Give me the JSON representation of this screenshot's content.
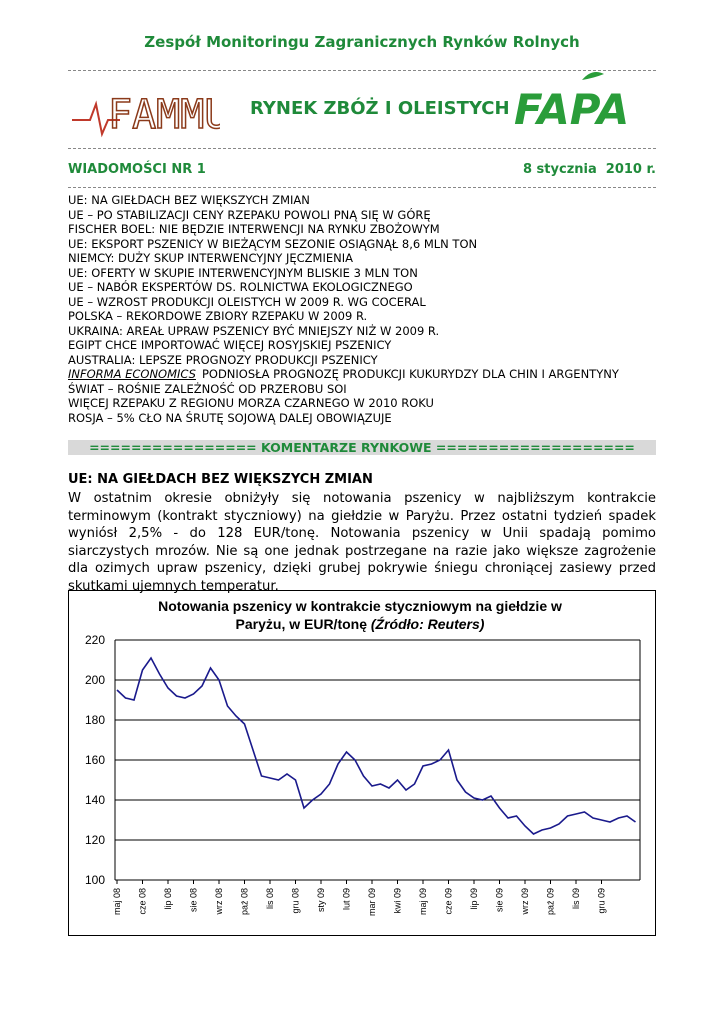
{
  "header": {
    "top": "Zespół Monitoringu Zagranicznych Rynków Rolnych",
    "logo_left": "FAMMU",
    "title": "RYNEK ZBÓŻ I OLEISTYCH",
    "logo_right": "FAPA"
  },
  "issue": {
    "number": "WIADOMOŚCI NR 1",
    "date": "8 stycznia  2010 r."
  },
  "items": [
    "UE: NA GIEŁDACH BEZ WIĘKSZYCH ZMIAN",
    "UE – PO STABILIZACJI CENY RZEPAKU POWOLI PNĄ SIĘ W GÓRĘ",
    "FISCHER BOEL: NIE BĘDZIE INTERWENCJI NA RYNKU ZBOŻOWYM",
    "UE: EKSPORT PSZENICY W BIEŻĄCYM SEZONIE OSIĄGNĄŁ 8,6 MLN TON",
    "NIEMCY: DUŻY SKUP INTERWENCYJNY JĘCZMIENIA",
    "UE: OFERTY W SKUPIE INTERWENCYJNYM BLISKIE 3 MLN TON",
    "UE – NABÓR EKSPERTÓW DS. ROLNICTWA EKOLOGICZNEGO",
    "UE – WZROST PRODUKCJI OLEISTYCH W 2009 R. WG COCERAL",
    "POLSKA – REKORDOWE ZBIORY RZEPAKU W 2009 R.",
    "UKRAINA: AREAŁ UPRAW PSZENICY BYĆ MNIEJSZY NIŻ W 2009 R.",
    "EGIPT CHCE IMPORTOWAĆ WIĘCEJ ROSYJSKIEJ PSZENICY",
    "AUSTRALIA: LEPSZE PROGNOZY PRODUKCJI PSZENICY",
    {
      "italic": "INFORMA ECONOMICS",
      "text": "PODNIOSŁA PROGNOZĘ PRODUKCJI KUKURYDZY DLA CHIN I ARGENTYNY"
    },
    "ŚWIAT – ROŚNIE ZALEŻNOŚĆ OD PRZEROBU SOI",
    "WIĘCEJ RZEPAKU Z REGIONU MORZA CZARNEGO W 2010 ROKU",
    "ROSJA – 5% CŁO NA ŚRUTĘ SOJOWĄ DALEJ OBOWIĄZUJE"
  ],
  "section": "================ KOMENTARZE RYNKOWE ===================",
  "article": {
    "heading": "UE: NA GIEŁDACH BEZ WIĘKSZYCH ZMIAN",
    "body": "W ostatnim okresie obniżyły się notowania pszenicy w najbliższym kontrakcie terminowym (kontrakt styczniowy) na giełdzie w Paryżu. Przez ostatni tydzień spadek wyniósł 2,5% - do 128 EUR/tonę. Notowania pszenicy w Unii spadają pomimo siarczystych mrozów. Nie są one jednak postrzegane na razie jako większe zagrożenie dla ozimych upraw pszenicy, dzięki grubej pokrywie śniegu chroniącej zasiewy przed skutkami ujemnych temperatur."
  },
  "chart_data": {
    "type": "line",
    "title": "Notowania pszenicy w kontrakcie styczniowym na giełdzie w Paryżu, w EUR/tonę",
    "source": "(Źródło: Reuters)",
    "categories": [
      "maj 08",
      null,
      null,
      "cze 08",
      null,
      null,
      "lip 08",
      null,
      null,
      "sie 08",
      null,
      null,
      "wrz 08",
      null,
      null,
      "paź 08",
      null,
      null,
      "lis 08",
      null,
      null,
      "gru 08",
      null,
      null,
      "sty 09",
      null,
      null,
      "lut 09",
      null,
      null,
      "mar 09",
      null,
      null,
      "kwi 09",
      null,
      null,
      "maj 09",
      null,
      null,
      "cze 09",
      null,
      null,
      "lip 09",
      null,
      null,
      "sie 09",
      null,
      null,
      "wrz 09",
      null,
      null,
      "paź 09",
      null,
      null,
      "lis 09",
      null,
      null,
      "gru 09",
      null,
      null,
      null,
      null
    ],
    "series": [
      {
        "name": "pszenica",
        "color": "#1a1a8c",
        "values": [
          195,
          191,
          190,
          205,
          211,
          203,
          196,
          192,
          191,
          193,
          197,
          206,
          200,
          187,
          182,
          178,
          165,
          152,
          151,
          150,
          153,
          150,
          136,
          140,
          143,
          148,
          158,
          164,
          160,
          152,
          147,
          148,
          146,
          150,
          145,
          148,
          157,
          158,
          160,
          165,
          150,
          144,
          141,
          140,
          142,
          136,
          131,
          132,
          127,
          123,
          125,
          126,
          128,
          132,
          133,
          134,
          131,
          130,
          129,
          131,
          132,
          129
        ]
      }
    ],
    "ylim": [
      100,
      220
    ],
    "yticks": [
      100,
      120,
      140,
      160,
      180,
      200,
      220
    ],
    "grid": true
  }
}
